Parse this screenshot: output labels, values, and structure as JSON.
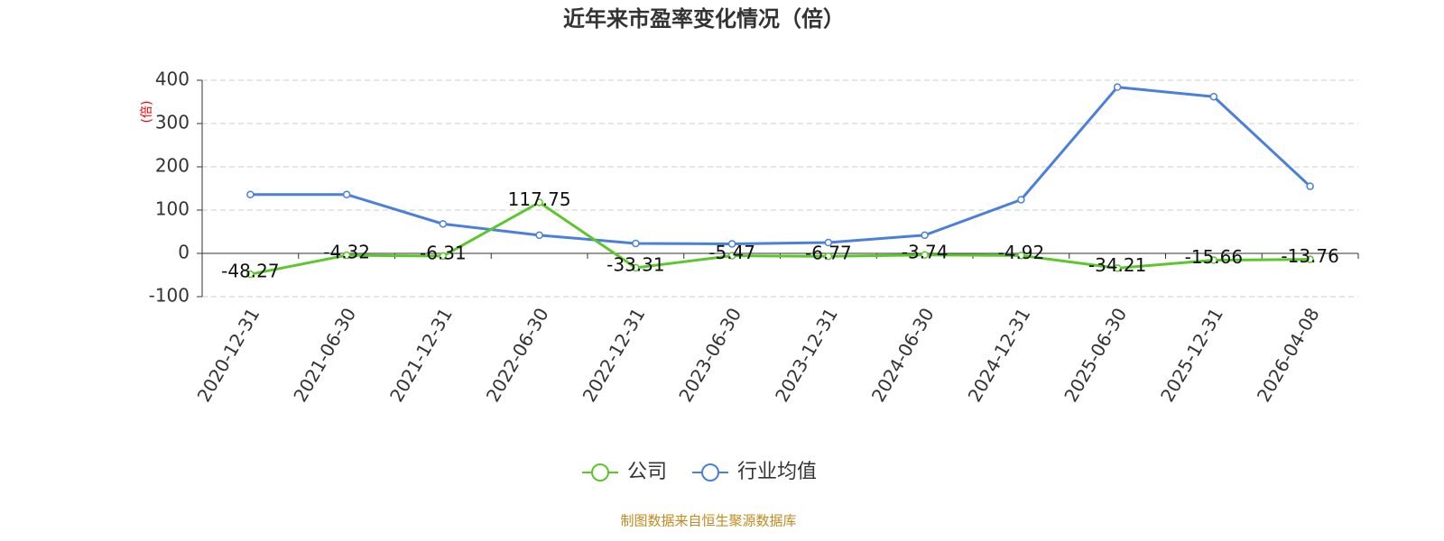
{
  "chart_data": {
    "type": "line",
    "title": "近年来市盈率变化情况（倍）",
    "y_label": "(倍)",
    "source": "制图数据来自恒生聚源数据库",
    "categories": [
      "2020-12-31",
      "2021-06-30",
      "2021-12-31",
      "2022-06-30",
      "2022-12-31",
      "2023-06-30",
      "2023-12-31",
      "2024-06-30",
      "2024-12-31",
      "2025-06-30",
      "2025-12-31",
      "2026-04-08"
    ],
    "series": [
      {
        "name": "公司",
        "color": "#5cc72b",
        "values": [
          -48.27,
          -4.32,
          -6.31,
          117.75,
          -33.31,
          -5.47,
          -6.77,
          -3.74,
          -4.92,
          -34.21,
          -15.66,
          -13.76
        ],
        "show_labels": true
      },
      {
        "name": "行业均值",
        "color": "#4a80dc",
        "values": [
          136,
          136,
          68,
          42,
          23,
          22,
          25,
          42,
          124,
          384,
          362,
          155
        ],
        "show_labels": false
      }
    ],
    "ylim": [
      -100,
      400
    ],
    "yticks": [
      -100,
      0,
      100,
      200,
      300,
      400
    ],
    "grid": true
  }
}
